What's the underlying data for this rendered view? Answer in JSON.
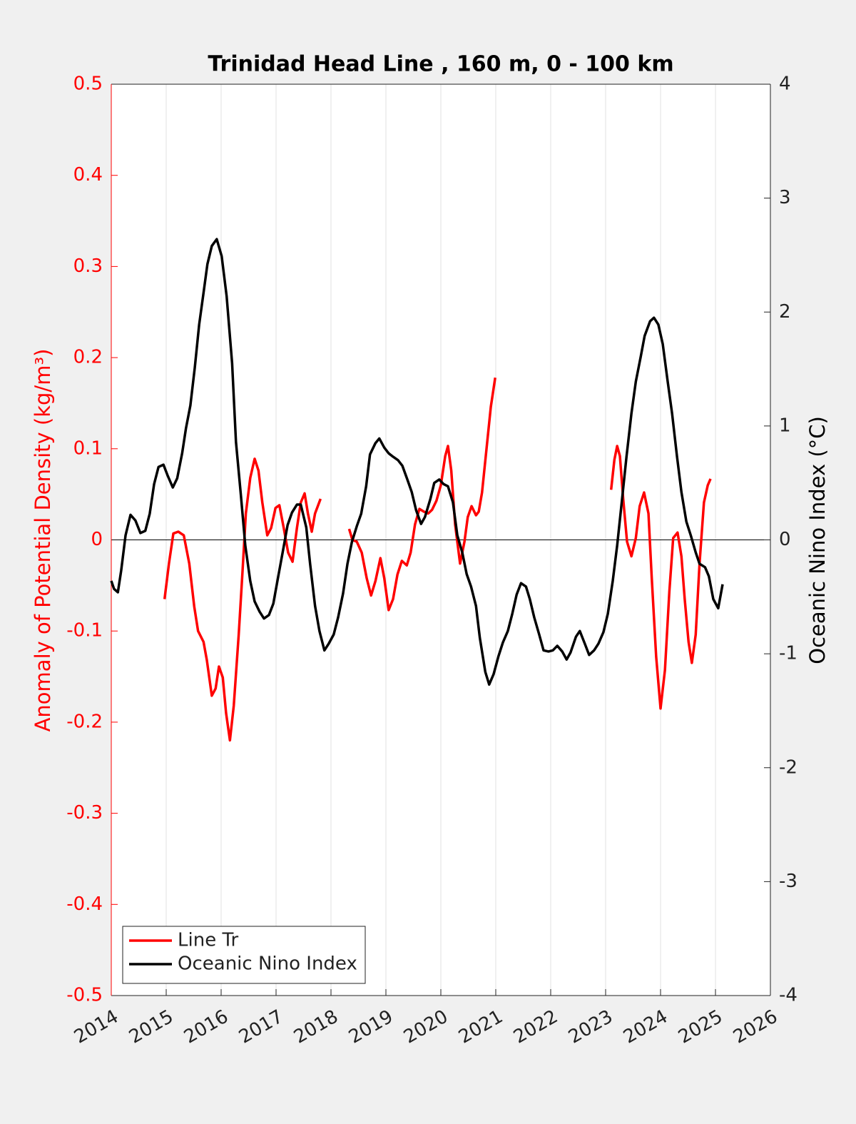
{
  "chart_data": {
    "type": "line",
    "title": "Trinidad Head Line , 160 m, 0 - 100 km",
    "y_label": "Anomaly of Potential Density (kg/m³)",
    "y2_label": "Oceanic Nino Index (°C)",
    "xlim": [
      2014,
      2026
    ],
    "xticks": [
      2014,
      2015,
      2016,
      2017,
      2018,
      2019,
      2020,
      2021,
      2022,
      2023,
      2024,
      2025,
      2026
    ],
    "ylim": [
      -0.5,
      0.5
    ],
    "yticks": [
      -0.5,
      -0.4,
      -0.3,
      -0.2,
      -0.1,
      0,
      0.1,
      0.2,
      0.3,
      0.4,
      0.5
    ],
    "y2lim": [
      -4,
      4
    ],
    "y2ticks": [
      -4,
      -3,
      -2,
      -1,
      0,
      1,
      2,
      3,
      4
    ],
    "grid": "x",
    "legend": "lower left",
    "series": [
      {
        "name": "Line Tr",
        "color": "#ff0000",
        "axis": "y",
        "x": [
          2014.97,
          2015.05,
          2015.13,
          2015.22,
          2015.32,
          2015.42,
          2015.51,
          2015.58,
          2015.68,
          2015.74,
          2015.83,
          2015.9,
          2015.96,
          2016.03,
          2016.09,
          2016.16,
          2016.23,
          2016.32,
          2016.39,
          2016.45,
          2016.53,
          2016.61,
          2016.68,
          2016.75,
          2016.84,
          2016.91,
          2016.99,
          2017.06,
          2017.14,
          2017.22,
          2017.3,
          2017.38,
          2017.45,
          2017.52,
          2017.58,
          2017.65,
          2017.71,
          2017.81,
          null,
          2018.33,
          2018.39,
          2018.47,
          2018.56,
          2018.65,
          2018.73,
          2018.81,
          2018.9,
          2018.97,
          2019.05,
          2019.13,
          2019.21,
          2019.29,
          2019.38,
          2019.45,
          2019.53,
          2019.61,
          2019.69,
          2019.77,
          2019.84,
          2019.92,
          2020.0,
          2020.08,
          2020.13,
          2020.19,
          2020.26,
          2020.35,
          2020.43,
          2020.49,
          2020.56,
          2020.64,
          2020.69,
          2020.75,
          2020.83,
          2020.91,
          2020.99,
          null,
          2023.1,
          2023.16,
          2023.21,
          2023.26,
          2023.32,
          2023.39,
          2023.47,
          2023.55,
          2023.62,
          2023.7,
          2023.78,
          2023.84,
          2023.92,
          2024.0,
          2024.08,
          2024.16,
          2024.23,
          2024.31,
          2024.38,
          2024.44,
          2024.51,
          2024.57,
          2024.64,
          2024.71,
          2024.79,
          2024.86,
          2024.91
        ],
        "values": [
          -0.065,
          -0.026,
          0.007,
          0.009,
          0.005,
          -0.026,
          -0.073,
          -0.1,
          -0.112,
          -0.132,
          -0.171,
          -0.163,
          -0.139,
          -0.151,
          -0.19,
          -0.22,
          -0.182,
          -0.104,
          -0.034,
          0.029,
          0.068,
          0.089,
          0.076,
          0.041,
          0.005,
          0.013,
          0.035,
          0.038,
          0.013,
          -0.014,
          -0.024,
          0.013,
          0.041,
          0.051,
          0.029,
          0.009,
          0.029,
          0.045,
          null,
          0.012,
          0,
          -0.002,
          -0.014,
          -0.042,
          -0.061,
          -0.045,
          -0.02,
          -0.042,
          -0.077,
          -0.065,
          -0.038,
          -0.023,
          -0.028,
          -0.014,
          0.017,
          0.034,
          0.031,
          0.029,
          0.033,
          0.043,
          0.06,
          0.092,
          0.103,
          0.076,
          0.017,
          -0.026,
          -0.002,
          0.025,
          0.037,
          0.027,
          0.031,
          0.052,
          0.099,
          0.146,
          0.178,
          null,
          0.055,
          0.088,
          0.103,
          0.092,
          0.045,
          -0.002,
          -0.018,
          0.002,
          0.037,
          0.052,
          0.029,
          -0.042,
          -0.128,
          -0.185,
          -0.143,
          -0.057,
          0.002,
          0.008,
          -0.018,
          -0.065,
          -0.112,
          -0.135,
          -0.104,
          -0.026,
          0.041,
          0.06,
          0.067
        ]
      },
      {
        "name": "Oceanic Nino Index",
        "color": "#000000",
        "axis": "y2",
        "x": [
          2014,
          2014.05,
          2014.12,
          2014.18,
          2014.26,
          2014.35,
          2014.44,
          2014.53,
          2014.62,
          2014.7,
          2014.78,
          2014.86,
          2014.95,
          2015.03,
          2015.12,
          2015.2,
          2015.29,
          2015.36,
          2015.44,
          2015.52,
          2015.6,
          2015.68,
          2015.75,
          2015.83,
          2015.92,
          2016.01,
          2016.1,
          2016.2,
          2016.27,
          2016.36,
          2016.44,
          2016.53,
          2016.61,
          2016.7,
          2016.78,
          2016.87,
          2016.95,
          2017.04,
          2017.12,
          2017.21,
          2017.29,
          2017.38,
          2017.45,
          2017.55,
          2017.62,
          2017.71,
          2017.79,
          2017.88,
          2017.96,
          2018.05,
          2018.13,
          2018.22,
          2018.3,
          2018.38,
          2018.47,
          2018.55,
          2018.64,
          2018.71,
          2018.81,
          2018.88,
          2018.97,
          2019.05,
          2019.13,
          2019.22,
          2019.3,
          2019.39,
          2019.47,
          2019.55,
          2019.64,
          2019.71,
          2019.81,
          2019.88,
          2019.97,
          2020.05,
          2020.13,
          2020.22,
          2020.3,
          2020.39,
          2020.47,
          2020.55,
          2020.64,
          2020.71,
          2020.81,
          2020.88,
          2020.96,
          2021.05,
          2021.13,
          2021.22,
          2021.3,
          2021.38,
          2021.46,
          2021.55,
          2021.62,
          2021.7,
          2021.79,
          2021.87,
          2021.96,
          2022.04,
          2022.12,
          2022.21,
          2022.29,
          2022.36,
          2022.46,
          2022.53,
          2022.62,
          2022.7,
          2022.79,
          2022.87,
          2022.96,
          2023.04,
          2023.13,
          2023.21,
          2023.3,
          2023.38,
          2023.47,
          2023.55,
          2023.64,
          2023.71,
          2023.81,
          2023.88,
          2023.96,
          2024.04,
          2024.13,
          2024.21,
          2024.3,
          2024.38,
          2024.47,
          2024.55,
          2024.64,
          2024.71,
          2024.81,
          2024.88,
          2024.96,
          2025.05,
          2025.13
        ],
        "values": [
          -0.36,
          -0.43,
          -0.46,
          -0.27,
          0.04,
          0.22,
          0.17,
          0.06,
          0.08,
          0.23,
          0.49,
          0.64,
          0.66,
          0.56,
          0.46,
          0.54,
          0.76,
          0.98,
          1.18,
          1.51,
          1.89,
          2.17,
          2.42,
          2.58,
          2.64,
          2.49,
          2.14,
          1.55,
          0.86,
          0.39,
          -0.05,
          -0.36,
          -0.54,
          -0.63,
          -0.69,
          -0.66,
          -0.56,
          -0.32,
          -0.11,
          0.13,
          0.24,
          0.31,
          0.31,
          0.11,
          -0.21,
          -0.58,
          -0.8,
          -0.97,
          -0.91,
          -0.83,
          -0.68,
          -0.47,
          -0.21,
          -0.02,
          0.12,
          0.23,
          0.47,
          0.75,
          0.85,
          0.89,
          0.81,
          0.76,
          0.73,
          0.7,
          0.65,
          0.53,
          0.42,
          0.26,
          0.14,
          0.2,
          0.36,
          0.5,
          0.53,
          0.49,
          0.47,
          0.33,
          0.04,
          -0.11,
          -0.3,
          -0.41,
          -0.58,
          -0.86,
          -1.16,
          -1.27,
          -1.18,
          -1.02,
          -0.9,
          -0.8,
          -0.65,
          -0.48,
          -0.38,
          -0.41,
          -0.52,
          -0.68,
          -0.83,
          -0.97,
          -0.98,
          -0.97,
          -0.93,
          -0.98,
          -1.05,
          -0.99,
          -0.85,
          -0.8,
          -0.91,
          -1.01,
          -0.97,
          -0.91,
          -0.81,
          -0.65,
          -0.36,
          -0.05,
          0.36,
          0.73,
          1.11,
          1.39,
          1.61,
          1.79,
          1.92,
          1.95,
          1.89,
          1.72,
          1.39,
          1.11,
          0.73,
          0.42,
          0.16,
          0.04,
          -0.11,
          -0.21,
          -0.24,
          -0.32,
          -0.52,
          -0.6,
          -0.39
        ]
      }
    ]
  }
}
